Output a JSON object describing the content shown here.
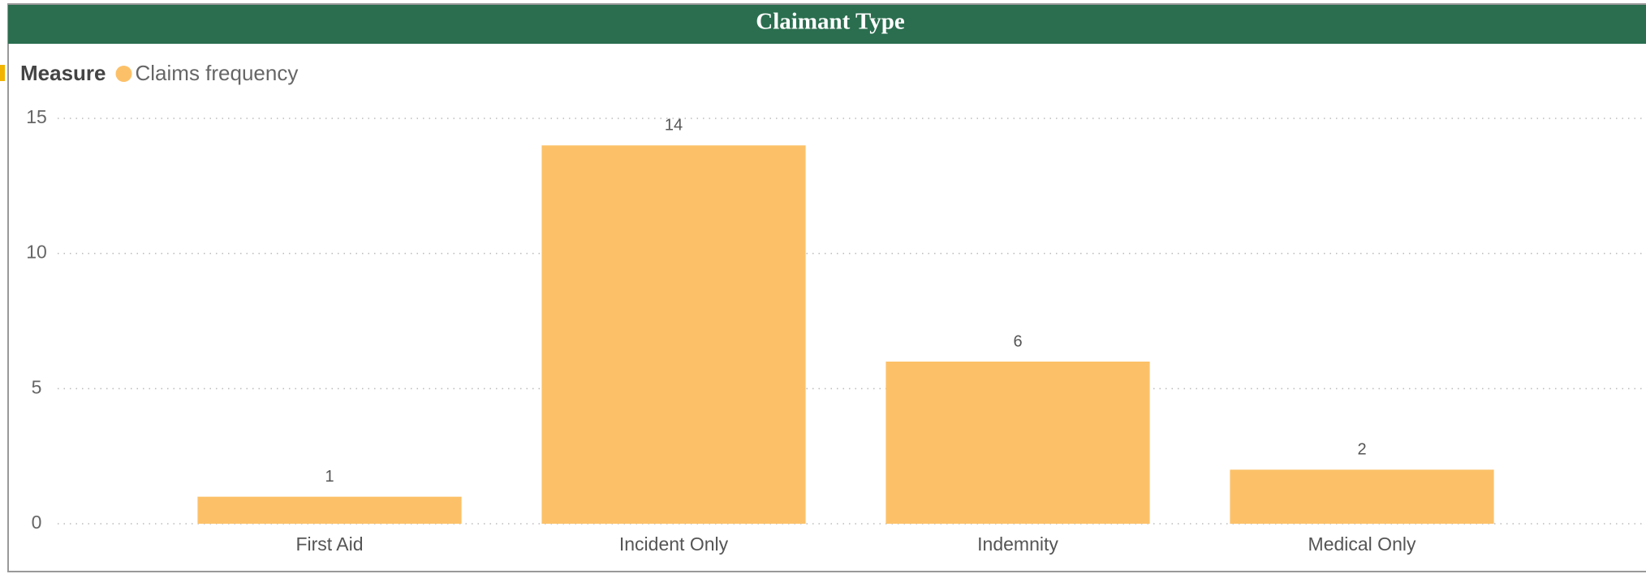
{
  "chart_data": {
    "type": "bar",
    "title": "Claimant Type",
    "legend_title": "Measure",
    "series": [
      {
        "name": "Claims frequency",
        "color": "#fcc168",
        "values": [
          1,
          14,
          6,
          2
        ]
      }
    ],
    "categories": [
      "First Aid",
      "Incident Only",
      "Indemnity",
      "Medical Only"
    ],
    "ylim": [
      0,
      15
    ],
    "yticks": [
      0,
      5,
      10,
      15
    ],
    "grid": true,
    "legend": "top-left",
    "data_labels": true
  }
}
